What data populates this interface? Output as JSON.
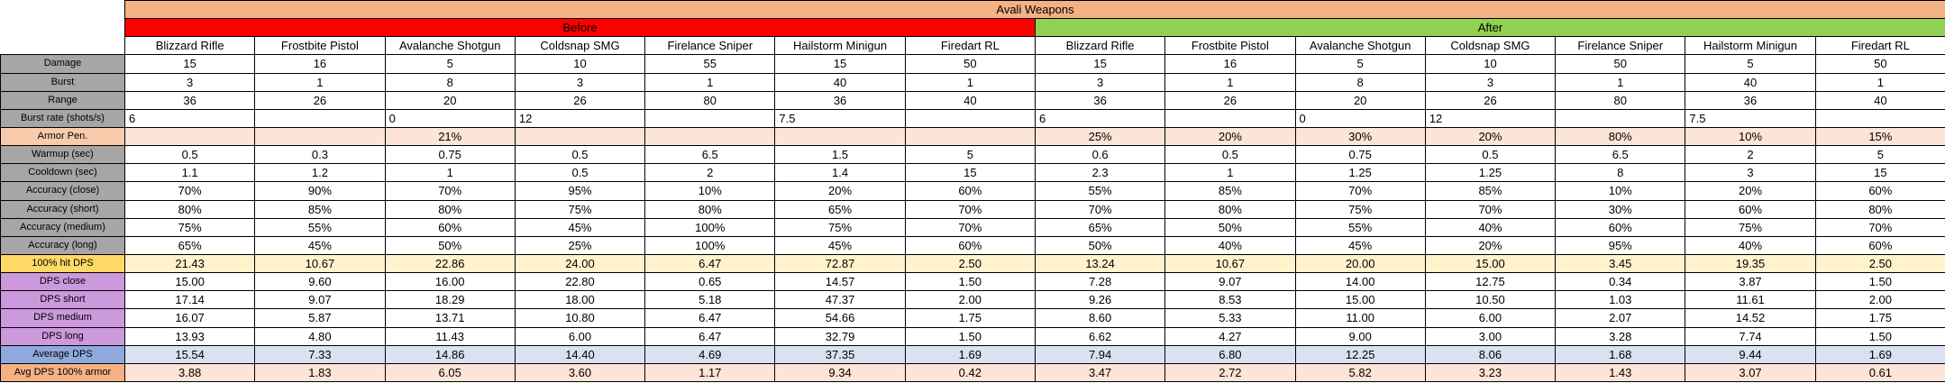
{
  "title": "Avali Weapons",
  "groups": [
    "Before",
    "After"
  ],
  "columns": [
    "Blizzard Rifle",
    "Frostbite Pistol",
    "Avalanche Shotgun",
    "Coldsnap SMG",
    "Firelance Sniper",
    "Hailstorm Minigun",
    "Firedart RL",
    "Blizzard Rifle",
    "Frostbite Pistol",
    "Avalanche Shotgun",
    "Coldsnap SMG",
    "Firelance Sniper",
    "Hailstorm Minigun",
    "Firedart RL"
  ],
  "rows": [
    {
      "label": "Damage",
      "cells": [
        "15",
        "16",
        "5",
        "10",
        "55",
        "15",
        "50",
        "15",
        "16",
        "5",
        "10",
        "50",
        "5",
        "50"
      ]
    },
    {
      "label": "Burst",
      "cells": [
        "3",
        "1",
        "8",
        "3",
        "1",
        "40",
        "1",
        "3",
        "1",
        "8",
        "3",
        "1",
        "40",
        "1"
      ]
    },
    {
      "label": "Range",
      "cells": [
        "36",
        "26",
        "20",
        "26",
        "80",
        "36",
        "40",
        "36",
        "26",
        "20",
        "26",
        "80",
        "36",
        "40"
      ]
    },
    {
      "label": "Burst rate (shots/s)",
      "cells": [
        "6",
        null,
        "0",
        "12",
        null,
        "7.5",
        null,
        "6",
        null,
        "0",
        "12",
        null,
        "7.5",
        null
      ]
    },
    {
      "label": "Armor Pen.",
      "cells": [
        null,
        null,
        "21%",
        null,
        null,
        null,
        null,
        "25%",
        "20%",
        "30%",
        "20%",
        "80%",
        "10%",
        "15%"
      ]
    },
    {
      "label": "Warmup (sec)",
      "cells": [
        "0.5",
        "0.3",
        "0.75",
        "0.5",
        "6.5",
        "1.5",
        "5",
        "0.6",
        "0.5",
        "0.75",
        "0.5",
        "6.5",
        "2",
        "5"
      ]
    },
    {
      "label": "Cooldown (sec)",
      "cells": [
        "1.1",
        "1.2",
        "1",
        "0.5",
        "2",
        "1.4",
        "15",
        "2.3",
        "1",
        "1.25",
        "1.25",
        "8",
        "3",
        "15"
      ]
    },
    {
      "label": "Accuracy (close)",
      "cells": [
        "70%",
        "90%",
        "70%",
        "95%",
        "10%",
        "20%",
        "60%",
        "55%",
        "85%",
        "70%",
        "85%",
        "10%",
        "20%",
        "60%"
      ]
    },
    {
      "label": "Accuracy (short)",
      "cells": [
        "80%",
        "85%",
        "80%",
        "75%",
        "80%",
        "65%",
        "70%",
        "70%",
        "80%",
        "75%",
        "70%",
        "30%",
        "60%",
        "80%"
      ]
    },
    {
      "label": "Accuracy (medium)",
      "cells": [
        "75%",
        "55%",
        "60%",
        "45%",
        "100%",
        "75%",
        "70%",
        "65%",
        "50%",
        "55%",
        "40%",
        "60%",
        "75%",
        "70%"
      ]
    },
    {
      "label": "Accuracy (long)",
      "cells": [
        "65%",
        "45%",
        "50%",
        "25%",
        "100%",
        "45%",
        "60%",
        "50%",
        "40%",
        "45%",
        "20%",
        "95%",
        "40%",
        "60%"
      ]
    },
    {
      "label": "100% hit DPS",
      "cells": [
        "21.43",
        "10.67",
        "22.86",
        "24.00",
        "6.47",
        "72.87",
        "2.50",
        "13.24",
        "10.67",
        "20.00",
        "15.00",
        "3.45",
        "19.35",
        "2.50"
      ]
    },
    {
      "label": "DPS close",
      "cells": [
        "15.00",
        "9.60",
        "16.00",
        "22.80",
        "0.65",
        "14.57",
        "1.50",
        "7.28",
        "9.07",
        "14.00",
        "12.75",
        "0.34",
        "3.87",
        "1.50"
      ]
    },
    {
      "label": "DPS short",
      "cells": [
        "17.14",
        "9.07",
        "18.29",
        "18.00",
        "5.18",
        "47.37",
        "2.00",
        "9.26",
        "8.53",
        "15.00",
        "10.50",
        "1.03",
        "11.61",
        "2.00"
      ]
    },
    {
      "label": "DPS medium",
      "cells": [
        "16.07",
        "5.87",
        "13.71",
        "10.80",
        "6.47",
        "54.66",
        "1.75",
        "8.60",
        "5.33",
        "11.00",
        "6.00",
        "2.07",
        "14.52",
        "1.75"
      ]
    },
    {
      "label": "DPS long",
      "cells": [
        "13.93",
        "4.80",
        "11.43",
        "6.00",
        "6.47",
        "32.79",
        "1.50",
        "6.62",
        "4.27",
        "9.00",
        "3.00",
        "3.28",
        "7.74",
        "1.50"
      ]
    },
    {
      "label": "Average DPS",
      "cells": [
        "15.54",
        "7.33",
        "14.86",
        "14.40",
        "4.69",
        "37.35",
        "1.69",
        "7.94",
        "6.80",
        "12.25",
        "8.06",
        "1.68",
        "9.44",
        "1.69"
      ]
    },
    {
      "label": "Avg DPS 100% armor",
      "cells": [
        "3.88",
        "1.83",
        "6.05",
        "3.60",
        "1.17",
        "9.34",
        "0.42",
        "3.47",
        "2.72",
        "5.82",
        "3.23",
        "1.43",
        "3.07",
        "0.61"
      ]
    }
  ]
}
